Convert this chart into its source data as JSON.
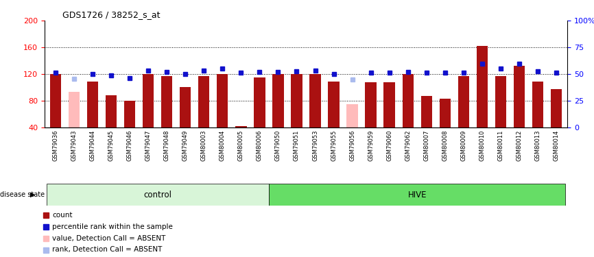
{
  "title": "GDS1726 / 38252_s_at",
  "samples": [
    "GSM79036",
    "GSM79043",
    "GSM79044",
    "GSM79045",
    "GSM79046",
    "GSM79047",
    "GSM79048",
    "GSM79049",
    "GSM80003",
    "GSM80004",
    "GSM80005",
    "GSM80006",
    "GSM79050",
    "GSM79051",
    "GSM79053",
    "GSM79055",
    "GSM79056",
    "GSM79059",
    "GSM79060",
    "GSM79062",
    "GSM80007",
    "GSM80008",
    "GSM80009",
    "GSM80010",
    "GSM80011",
    "GSM80012",
    "GSM80013",
    "GSM80014"
  ],
  "bar_values": [
    120,
    93,
    108,
    88,
    80,
    120,
    117,
    100,
    117,
    120,
    42,
    115,
    120,
    120,
    120,
    108,
    75,
    107,
    107,
    120,
    87,
    83,
    117,
    162,
    117,
    132,
    108,
    97
  ],
  "bar_absent": [
    false,
    true,
    false,
    false,
    false,
    false,
    false,
    false,
    false,
    false,
    false,
    false,
    false,
    false,
    false,
    false,
    true,
    false,
    false,
    false,
    false,
    false,
    false,
    false,
    false,
    false,
    false,
    false
  ],
  "percentile_values": [
    122,
    113,
    120,
    118,
    114,
    125,
    123,
    120,
    125,
    128,
    122,
    123,
    123,
    124,
    125,
    120,
    112,
    122,
    122,
    123,
    122,
    122,
    122,
    135,
    128,
    135,
    124,
    122
  ],
  "percentile_absent": [
    false,
    true,
    false,
    false,
    false,
    false,
    false,
    false,
    false,
    false,
    false,
    false,
    false,
    false,
    false,
    false,
    true,
    false,
    false,
    false,
    false,
    false,
    false,
    false,
    false,
    false,
    false,
    false
  ],
  "group_labels": [
    "control",
    "HIVE"
  ],
  "group_ranges": [
    [
      0,
      12
    ],
    [
      12,
      28
    ]
  ],
  "group_colors_light": [
    "#d8f5d8",
    "#66dd66"
  ],
  "ylim_left": [
    40,
    200
  ],
  "ylim_right": [
    0,
    100
  ],
  "yticks_left": [
    40,
    80,
    120,
    160,
    200
  ],
  "yticks_right": [
    0,
    25,
    50,
    75,
    100
  ],
  "bar_color": "#aa1111",
  "bar_absent_color": "#ffbbbb",
  "dot_color": "#1111cc",
  "dot_absent_color": "#aabbee",
  "legend_items": [
    {
      "label": "count",
      "color": "#aa1111"
    },
    {
      "label": "percentile rank within the sample",
      "color": "#1111cc"
    },
    {
      "label": "value, Detection Call = ABSENT",
      "color": "#ffbbbb"
    },
    {
      "label": "rank, Detection Call = ABSENT",
      "color": "#aabbee"
    }
  ],
  "right_ytick_labels": [
    "0",
    "25",
    "50",
    "75",
    "100%"
  ],
  "grid_lines": [
    80,
    120,
    160
  ]
}
